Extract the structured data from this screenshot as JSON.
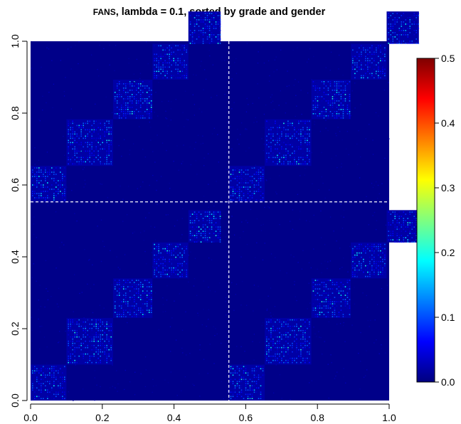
{
  "chart_data": {
    "type": "heatmap",
    "title_lead": "FANS",
    "title_rest": ", lambda = 0.1, sorted by grade and gender",
    "xlabel": "",
    "ylabel": "",
    "xlim": [
      0,
      1
    ],
    "ylim": [
      0,
      1
    ],
    "x_ticks": [
      "0.0",
      "0.2",
      "0.4",
      "0.6",
      "0.8",
      "1.0"
    ],
    "y_ticks": [
      "0.0",
      "0.2",
      "0.4",
      "0.6",
      "0.8",
      "1.0"
    ],
    "gender_split": 0.553,
    "grade_blocks": [
      {
        "start": 0.0,
        "end": 0.1
      },
      {
        "start": 0.1,
        "end": 0.23
      },
      {
        "start": 0.23,
        "end": 0.34
      },
      {
        "start": 0.34,
        "end": 0.44
      },
      {
        "start": 0.44,
        "end": 0.53
      }
    ],
    "background_value": 0.005,
    "block_value_range": [
      0.02,
      0.12
    ],
    "colorbar": {
      "min": 0,
      "max": 0.5,
      "ticks": [
        "0.0",
        "0.1",
        "0.2",
        "0.3",
        "0.4",
        "0.5"
      ],
      "colors": [
        "#00007F",
        "#0000FF",
        "#007FFF",
        "#00FFFF",
        "#7FFF7F",
        "#FFFF00",
        "#FF7F00",
        "#FF0000",
        "#7F0000"
      ]
    }
  }
}
